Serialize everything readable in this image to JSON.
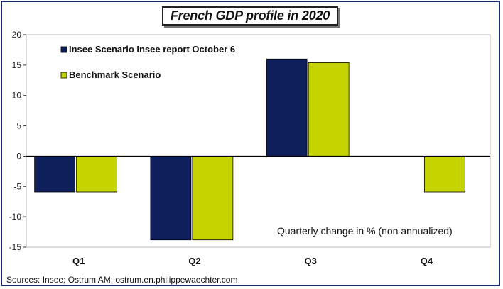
{
  "source": "Sources: Insee; Ostrum AM;  ostrum.en.philippewaechter.com",
  "chart_data": {
    "type": "bar",
    "title": "French GDP profile in 2020",
    "categories": [
      "Q1",
      "Q2",
      "Q3",
      "Q4"
    ],
    "series": [
      {
        "name": "Insee Scenario Insee report October 6",
        "values": [
          -5.9,
          -13.8,
          16.0,
          null
        ],
        "color": "#0e1f5b"
      },
      {
        "name": "Benchmark Scenario",
        "values": [
          -5.9,
          -13.8,
          15.4,
          -5.9
        ],
        "color": "#c5d400"
      }
    ],
    "ylim": [
      -15,
      20
    ],
    "yticks": [
      20,
      15,
      10,
      5,
      0,
      -5,
      -10,
      -15
    ],
    "annotation": "Quarterly change in % (non annualized)",
    "legend": "top-left",
    "grid": false
  }
}
